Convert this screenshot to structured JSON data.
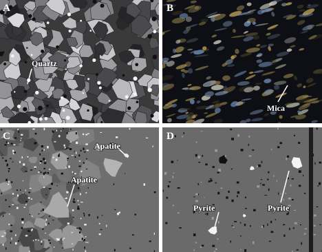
{
  "panels": [
    {
      "letter": "A",
      "labels": [
        "Quartz"
      ]
    },
    {
      "letter": "B",
      "labels": [
        "Mica"
      ]
    },
    {
      "letter": "C",
      "labels": [
        "Apatite",
        "Apatite"
      ]
    },
    {
      "letter": "D",
      "labels": [
        "Pyrite",
        "Pyrite"
      ]
    }
  ]
}
